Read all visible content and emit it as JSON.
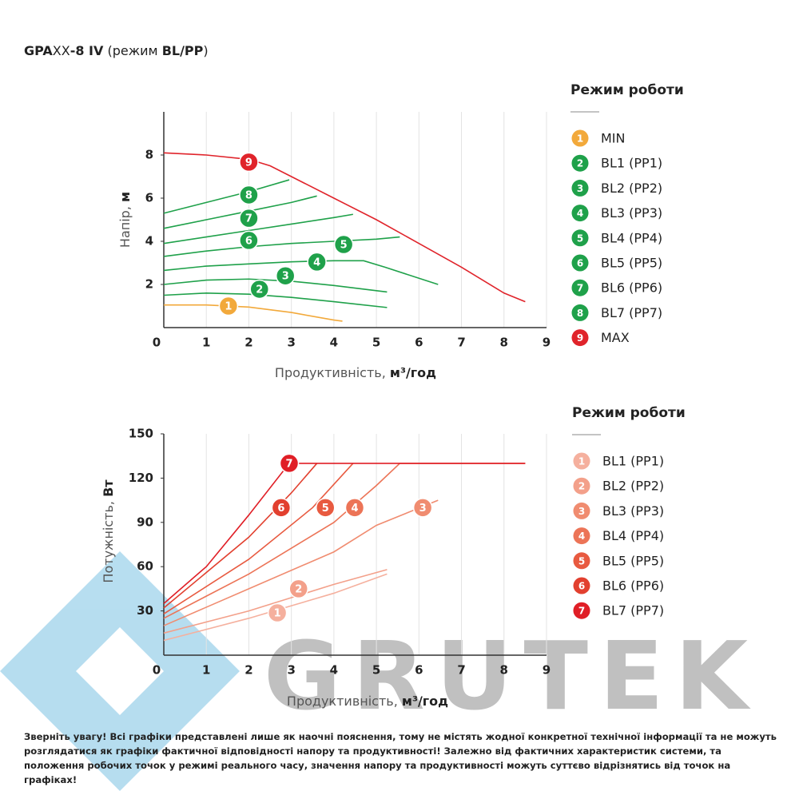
{
  "page": {
    "title": [
      "GPA",
      "XX",
      "-8 IV",
      " (режим ",
      "BL/PP",
      ")"
    ],
    "watermark": "GRUTEK",
    "note": "Зверніть увагу! Всі графіки представлені лише як наочні пояснення, тому не містять жодної конкретної технічної інформації та не можуть розглядатися як графіки фактичної відповідності напору та продуктивності! Залежно від фактичних характеристик системи, та положення робочих точок у режимі реального часу, значення напору та продуктивності можуть суттєво відрізнятись від точок на графіках!"
  },
  "chart_data": [
    {
      "type": "line",
      "xlabel": [
        "Продуктивність, ",
        "м³/год"
      ],
      "ylabel": [
        "Напір, ",
        "м"
      ],
      "legend_title": "Режим роботи",
      "xlim": [
        0,
        9
      ],
      "xticks": [
        0,
        1,
        2,
        3,
        4,
        5,
        6,
        7,
        8,
        9
      ],
      "ylim": [
        0,
        10
      ],
      "yticks": [
        2,
        4,
        6,
        8
      ],
      "grid": true,
      "series": [
        {
          "name": "MIN",
          "marker": "1",
          "color": "#f2a93b",
          "x": [
            0,
            1,
            2,
            3,
            4,
            4.2
          ],
          "values": [
            1.05,
            1.05,
            0.95,
            0.7,
            0.35,
            0.3
          ],
          "marker_x": 1.52,
          "marker_y": 1.0
        },
        {
          "name": "BL1 (PP1)",
          "marker": "2",
          "color": "#1fa14a",
          "x": [
            0,
            1,
            2,
            3,
            4,
            5.25
          ],
          "values": [
            1.5,
            1.6,
            1.55,
            1.4,
            1.2,
            0.93
          ],
          "marker_x": 2.25,
          "marker_y": 1.78
        },
        {
          "name": "BL2 (PP2)",
          "marker": "3",
          "color": "#1fa14a",
          "x": [
            0,
            1,
            2,
            3,
            4,
            5.25
          ],
          "values": [
            2.0,
            2.2,
            2.25,
            2.15,
            1.95,
            1.65
          ],
          "marker_x": 2.86,
          "marker_y": 2.4
        },
        {
          "name": "BL3 (PP3)",
          "marker": "4",
          "color": "#1fa14a",
          "x": [
            0,
            1,
            2,
            3,
            4,
            4.7,
            5.2,
            6.45
          ],
          "values": [
            2.65,
            2.85,
            2.95,
            3.05,
            3.1,
            3.1,
            2.8,
            2.0
          ],
          "marker_x": 3.6,
          "marker_y": 3.04
        },
        {
          "name": "BL4 (PP4)",
          "marker": "5",
          "color": "#1fa14a",
          "x": [
            0,
            1,
            2,
            3,
            4,
            5,
            5.55
          ],
          "values": [
            3.3,
            3.55,
            3.75,
            3.9,
            4.0,
            4.1,
            4.2
          ],
          "marker_x": 4.23,
          "marker_y": 3.85
        },
        {
          "name": "BL5 (PP5)",
          "marker": "6",
          "color": "#1fa14a",
          "x": [
            0,
            1,
            2,
            3,
            4,
            4.45
          ],
          "values": [
            3.9,
            4.2,
            4.5,
            4.8,
            5.1,
            5.25
          ],
          "marker_x": 2.0,
          "marker_y": 4.04
        },
        {
          "name": "BL6 (PP6)",
          "marker": "7",
          "color": "#1fa14a",
          "x": [
            0,
            1,
            2,
            3,
            3.6
          ],
          "values": [
            4.6,
            5.0,
            5.4,
            5.8,
            6.1
          ],
          "marker_x": 2.0,
          "marker_y": 5.07
        },
        {
          "name": "BL7 (PP7)",
          "marker": "8",
          "color": "#1fa14a",
          "x": [
            0,
            1,
            2,
            2.95
          ],
          "values": [
            5.3,
            5.8,
            6.3,
            6.85
          ],
          "marker_x": 2.0,
          "marker_y": 6.15
        },
        {
          "name": "MAX",
          "marker": "9",
          "color": "#e0242b",
          "x": [
            0,
            1,
            2,
            2.5,
            3,
            4,
            5,
            6,
            7,
            8,
            8.5
          ],
          "values": [
            8.1,
            8.0,
            7.8,
            7.5,
            7.0,
            6.0,
            5.0,
            3.9,
            2.8,
            1.6,
            1.2
          ],
          "marker_x": 2.0,
          "marker_y": 7.67
        }
      ]
    },
    {
      "type": "line",
      "xlabel": [
        "Продуктивність, ",
        "м³/год"
      ],
      "ylabel": [
        "Потужність, ",
        "Вт"
      ],
      "legend_title": "Режим роботи",
      "xlim": [
        0,
        9
      ],
      "xticks": [
        0,
        1,
        2,
        3,
        4,
        5,
        6,
        7,
        8,
        9
      ],
      "ylim": [
        0,
        150
      ],
      "yticks": [
        30,
        60,
        90,
        120,
        150
      ],
      "grid": true,
      "series": [
        {
          "name": "BL1 (PP1)",
          "marker": "1",
          "color": "#f5b09e",
          "x": [
            0,
            2,
            4,
            5.25
          ],
          "values": [
            10,
            25,
            42,
            55
          ],
          "marker_x": 2.67,
          "marker_y": 28.7
        },
        {
          "name": "BL2 (PP2)",
          "marker": "2",
          "color": "#f3a08a",
          "x": [
            0,
            2,
            4,
            5.25
          ],
          "values": [
            15,
            30,
            48,
            58
          ],
          "marker_x": 3.17,
          "marker_y": 45
        },
        {
          "name": "BL3 (PP3)",
          "marker": "3",
          "color": "#f08c70",
          "x": [
            0,
            2,
            4,
            5,
            6.45
          ],
          "values": [
            20,
            45,
            70,
            88,
            105
          ],
          "marker_x": 6.09,
          "marker_y": 100
        },
        {
          "name": "BL4 (PP4)",
          "marker": "4",
          "color": "#ec7457",
          "x": [
            0,
            2,
            4,
            5,
            5.55,
            8.5
          ],
          "values": [
            25,
            55,
            90,
            115,
            130,
            130
          ],
          "marker_x": 4.49,
          "marker_y": 100
        },
        {
          "name": "BL5 (PP5)",
          "marker": "5",
          "color": "#e85a40",
          "x": [
            0,
            2,
            3.5,
            4.45
          ],
          "values": [
            28,
            65,
            100,
            130
          ],
          "marker_x": 3.8,
          "marker_y": 100
        },
        {
          "name": "BL6 (PP6)",
          "marker": "6",
          "color": "#e2402f",
          "x": [
            0,
            2,
            3,
            3.6
          ],
          "values": [
            32,
            80,
            110,
            130
          ],
          "marker_x": 2.76,
          "marker_y": 100
        },
        {
          "name": "BL7 (PP7)",
          "marker": "7",
          "color": "#e01e26",
          "x": [
            0,
            1,
            2,
            2.95,
            8.5
          ],
          "values": [
            35,
            60,
            95,
            130,
            130
          ],
          "marker_x": 2.95,
          "marker_y": 130
        }
      ]
    }
  ]
}
